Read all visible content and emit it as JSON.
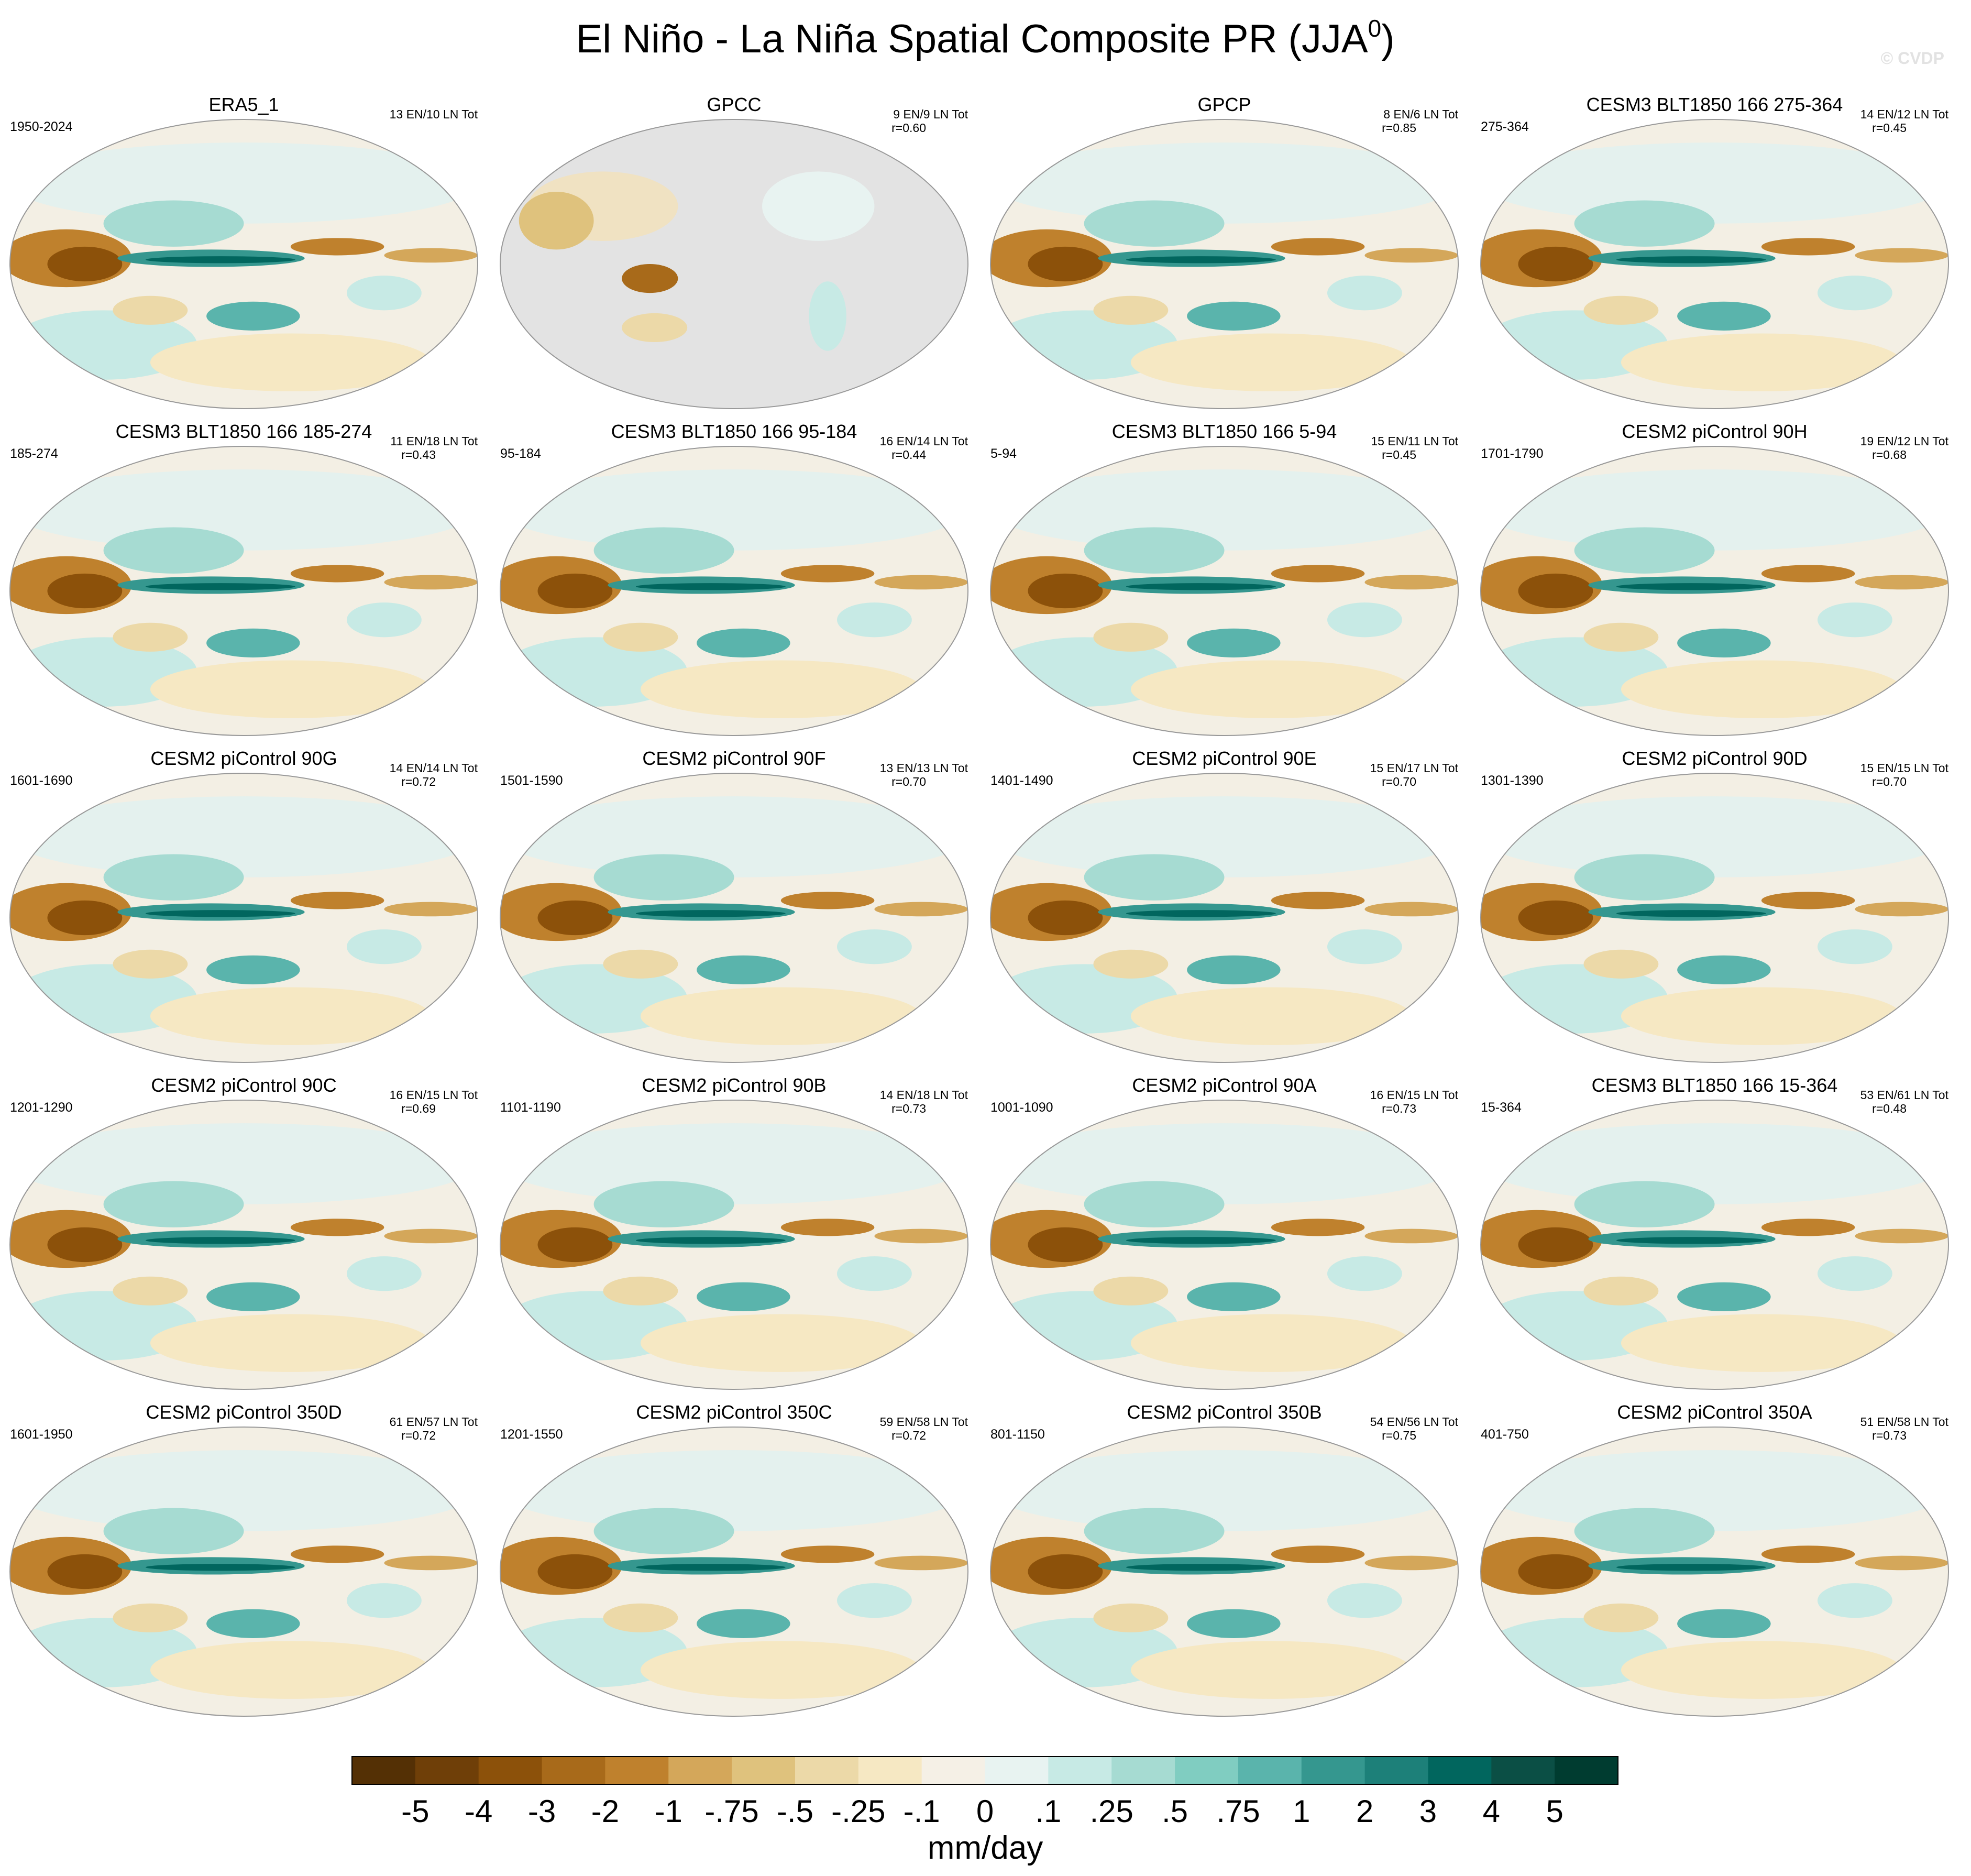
{
  "header": {
    "title": "El Niño - La Niña Spatial Composite PR (JJA",
    "title_superscript": "0",
    "title_end": ")",
    "watermark": "© CVDP"
  },
  "panels": [
    {
      "title": "ERA5_1",
      "period": "1950-2024",
      "stats": [
        "13 EN/10 LN Tot"
      ]
    },
    {
      "title": "GPCC",
      "stats": [
        "9 EN/9 LN Tot",
        "r=0.60"
      ]
    },
    {
      "title": "GPCP",
      "stats": [
        "8 EN/6 LN Tot",
        "r=0.85"
      ]
    },
    {
      "title": "CESM3 BLT1850 166 275-364",
      "period": "275-364",
      "stats": [
        "14 EN/12 LN Tot",
        "r=0.45"
      ]
    },
    {
      "title": "CESM3 BLT1850 166 185-274",
      "period": "185-274",
      "stats": [
        "11 EN/18 LN Tot",
        "r=0.43"
      ]
    },
    {
      "title": "CESM3 BLT1850 166 95-184",
      "period": "95-184",
      "stats": [
        "16 EN/14 LN Tot",
        "r=0.44"
      ]
    },
    {
      "title": "CESM3 BLT1850 166 5-94",
      "period": "5-94",
      "stats": [
        "15 EN/11 LN Tot",
        "r=0.45"
      ]
    },
    {
      "title": "CESM2 piControl 90H",
      "period": "1701-1790",
      "stats": [
        "19 EN/12 LN Tot",
        "r=0.68"
      ]
    },
    {
      "title": "CESM2 piControl 90G",
      "period": "1601-1690",
      "stats": [
        "14 EN/14 LN Tot",
        "r=0.72"
      ]
    },
    {
      "title": "CESM2 piControl 90F",
      "period": "1501-1590",
      "stats": [
        "13 EN/13 LN Tot",
        "r=0.70"
      ]
    },
    {
      "title": "CESM2 piControl 90E",
      "period": "1401-1490",
      "stats": [
        "15 EN/17 LN Tot",
        "r=0.70"
      ]
    },
    {
      "title": "CESM2 piControl 90D",
      "period": "1301-1390",
      "stats": [
        "15 EN/15 LN Tot",
        "r=0.70"
      ]
    },
    {
      "title": "CESM2 piControl 90C",
      "period": "1201-1290",
      "stats": [
        "16 EN/15 LN Tot",
        "r=0.69"
      ]
    },
    {
      "title": "CESM2 piControl 90B",
      "period": "1101-1190",
      "stats": [
        "14 EN/18 LN Tot",
        "r=0.73"
      ]
    },
    {
      "title": "CESM2 piControl 90A",
      "period": "1001-1090",
      "stats": [
        "16 EN/15 LN Tot",
        "r=0.73"
      ]
    },
    {
      "title": "CESM3 BLT1850 166 15-364",
      "period": "15-364",
      "stats": [
        "53 EN/61 LN Tot",
        "r=0.48"
      ]
    },
    {
      "title": "CESM2 piControl 350D",
      "period": "1601-1950",
      "stats": [
        "61 EN/57 LN Tot",
        "r=0.72"
      ]
    },
    {
      "title": "CESM2 piControl 350C",
      "period": "1201-1550",
      "stats": [
        "59 EN/58 LN Tot",
        "r=0.72"
      ]
    },
    {
      "title": "CESM2 piControl 350B",
      "period": "801-1150",
      "stats": [
        "54 EN/56 LN Tot",
        "r=0.75"
      ]
    },
    {
      "title": "CESM2 piControl 350A",
      "period": "401-750",
      "stats": [
        "51 EN/58 LN Tot",
        "r=0.73"
      ]
    }
  ],
  "colorbar": {
    "colors": [
      "#543005",
      "#6f3f08",
      "#8c510a",
      "#a86a1a",
      "#bf812d",
      "#d4a75a",
      "#dfc27d",
      "#ecd9a8",
      "#f6e8c3",
      "#f5f0e6",
      "#e8f3f1",
      "#c7eae5",
      "#a6dbd2",
      "#80cdc1",
      "#5ab4ac",
      "#35978f",
      "#1d8079",
      "#01665e",
      "#0b4f45",
      "#003c30"
    ],
    "labels": [
      "-5",
      "-4",
      "-3",
      "-2",
      "-1",
      "-.75",
      "-.5",
      "-.25",
      "-.1",
      "0",
      ".1",
      ".25",
      ".5",
      ".75",
      "1",
      "2",
      "3",
      "4",
      "5"
    ],
    "units": "mm/day"
  }
}
